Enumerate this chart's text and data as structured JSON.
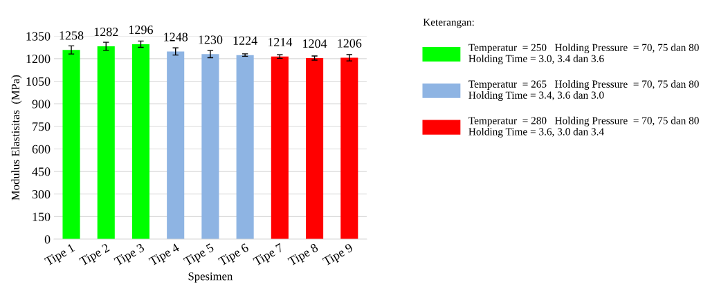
{
  "chart_data": {
    "type": "bar",
    "xlabel": "Spesimen",
    "ylabel": "Modulus Elastisitas  (MPa)",
    "categories": [
      "Tipe 1",
      "Tipe 2",
      "Tipe 3",
      "Tipe 4",
      "Tipe 5",
      "Tipe 6",
      "Tipe 7",
      "Tipe 8",
      "Tipe 9"
    ],
    "series": [
      {
        "name": "Temperatur  = 250   Holding Pressure  = 70, 75 dan 80\nHolding Time = 3.0, 3.4 dan 3.6",
        "color": "#00ff00",
        "values": [
          1258,
          1282,
          1296,
          null,
          null,
          null,
          null,
          null,
          null
        ],
        "errors": [
          27,
          27,
          21,
          null,
          null,
          null,
          null,
          null,
          null
        ]
      },
      {
        "name": "Temperatur  = 265   Holding Pressure  = 70, 75 dan 80\nHolding Time = 3.4, 3.6 dan 3.0",
        "color": "#8eb4e3",
        "values": [
          null,
          null,
          null,
          1248,
          1230,
          1224,
          null,
          null,
          null
        ],
        "errors": [
          null,
          null,
          null,
          24,
          24,
          8,
          null,
          null,
          null
        ]
      },
      {
        "name": "Temperatur  = 280   Holding Pressure  = 70, 75 dan 80\nHolding Time = 3.6, 3.0 dan 3.4",
        "color": "#ff0000",
        "values": [
          null,
          null,
          null,
          null,
          null,
          null,
          1214,
          1204,
          1206
        ],
        "errors": [
          null,
          null,
          null,
          null,
          null,
          null,
          12,
          14,
          21
        ]
      }
    ],
    "legend_title": "Keterangan:",
    "legend": "right",
    "ylim": [
      0,
      1350
    ],
    "yticks": [
      0,
      150,
      300,
      450,
      600,
      750,
      900,
      1050,
      1200,
      1350
    ],
    "grid": "y",
    "data_labels": true
  }
}
